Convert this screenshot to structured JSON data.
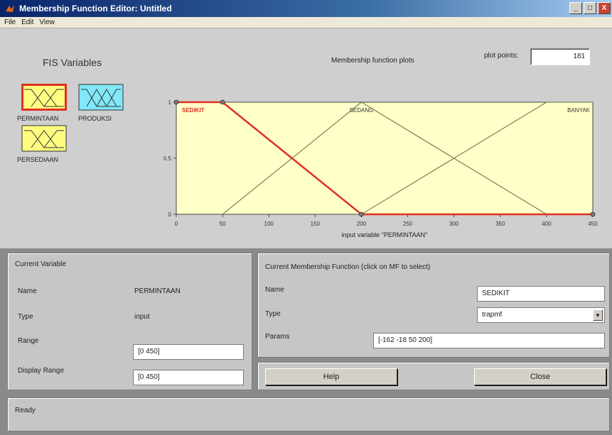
{
  "window": {
    "title": "Membership Function Editor: Untitled",
    "buttons": [
      "_",
      "□",
      "X"
    ]
  },
  "menu": [
    "File",
    "Edit",
    "View"
  ],
  "fis": {
    "title": "FIS Variables",
    "variables": [
      {
        "label": "PERMINTAAN",
        "fill": "#fffc80",
        "selected": true
      },
      {
        "label": "PRODUKSI",
        "fill": "#80e8f8",
        "selected": false
      },
      {
        "label": "PERSEDIAAN",
        "fill": "#fffc80",
        "selected": false
      }
    ]
  },
  "plot": {
    "title": "Membership function plots",
    "plot_points_label": "plot points:",
    "plot_points_value": "181",
    "xlabel": "input variable \"PERMINTAAN\"",
    "background": "#ffffc8",
    "highlight": "#e03020",
    "line_color": "#666644"
  },
  "chart_data": {
    "type": "line",
    "xlim": [
      0,
      450
    ],
    "ylim": [
      0,
      1
    ],
    "xticks": [
      "0",
      "50",
      "100",
      "150",
      "200",
      "250",
      "300",
      "350",
      "400",
      "450"
    ],
    "yticks": [
      "0",
      "0.5",
      "1"
    ],
    "series": [
      {
        "name": "SEDIKIT",
        "x": [
          0,
          50,
          200,
          450
        ],
        "y": [
          1,
          1,
          0,
          0
        ],
        "selected": true
      },
      {
        "name": "SEDANG",
        "x": [
          50,
          200,
          400
        ],
        "y": [
          0,
          1,
          0
        ],
        "selected": false
      },
      {
        "name": "BANYAK",
        "x": [
          200,
          400,
          450
        ],
        "y": [
          0,
          1,
          1
        ],
        "selected": false
      }
    ]
  },
  "current_variable": {
    "heading": "Current Variable",
    "name_label": "Name",
    "name_value": "PERMINTAAN",
    "type_label": "Type",
    "type_value": "input",
    "range_label": "Range",
    "range_value": "[0 450]",
    "display_range_label": "Display Range",
    "display_range_value": "[0 450]"
  },
  "current_mf": {
    "heading": "Current Membership Function (click on MF to select)",
    "name_label": "Name",
    "name_value": "SEDIKIT",
    "type_label": "Type",
    "type_value": "trapmf",
    "params_label": "Params",
    "params_value": "[-162 -18 50 200]"
  },
  "buttons": {
    "help": "Help",
    "close": "Close"
  },
  "status": "Ready"
}
